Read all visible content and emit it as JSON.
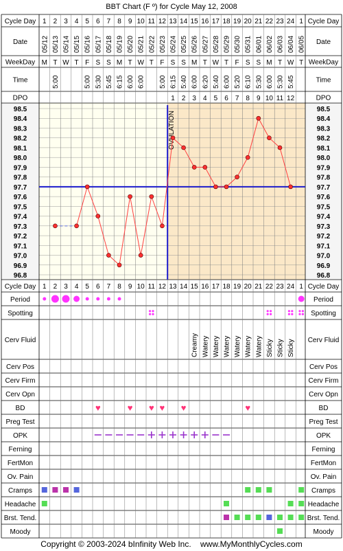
{
  "title": "BBT Chart (F º) for Cycle May 12, 2008",
  "footer": "Copyright © 2003-2024 bInfinity Web Inc.    www.MyMonthlyCycles.com",
  "row_labels": {
    "cycle_day": "Cycle Day",
    "date": "Date",
    "weekday": "WeekDay",
    "time": "Time",
    "dpo": "DPO",
    "ovulation": "OVULATION"
  },
  "cycle_days": [
    "1",
    "2",
    "3",
    "4",
    "5",
    "6",
    "7",
    "8",
    "9",
    "10",
    "11",
    "12",
    "13",
    "14",
    "15",
    "16",
    "17",
    "18",
    "19",
    "20",
    "21",
    "22",
    "23",
    "24",
    "1"
  ],
  "dates": [
    "05/12",
    "05/13",
    "05/14",
    "05/15",
    "05/16",
    "05/17",
    "05/18",
    "05/19",
    "05/20",
    "05/21",
    "05/22",
    "05/23",
    "05/24",
    "05/25",
    "05/26",
    "05/27",
    "05/28",
    "05/29",
    "05/30",
    "05/31",
    "06/01",
    "06/02",
    "06/03",
    "06/04",
    "06/05"
  ],
  "weekdays": [
    "M",
    "T",
    "W",
    "T",
    "F",
    "S",
    "S",
    "M",
    "T",
    "W",
    "T",
    "F",
    "S",
    "S",
    "M",
    "T",
    "W",
    "T",
    "F",
    "S",
    "S",
    "M",
    "T",
    "W",
    "T"
  ],
  "times": [
    "",
    "5:00",
    "",
    "",
    "5:00",
    "5:30",
    "5:45",
    "6:15",
    "6:00",
    "6:00",
    "",
    "5:00",
    "6:15",
    "5:40",
    "6:00",
    "6:20",
    "5:40",
    "6:00",
    "5:20",
    "6:10",
    "5:30",
    "6:00",
    "5:30",
    "5:45",
    ""
  ],
  "dpo": [
    "",
    "",
    "",
    "",
    "",
    "",
    "",
    "",
    "",
    "",
    "",
    "",
    "1",
    "2",
    "3",
    "4",
    "5",
    "6",
    "7",
    "8",
    "9",
    "10",
    "11",
    "12",
    ""
  ],
  "bottom_rows": [
    {
      "key": "period",
      "label": "Period"
    },
    {
      "key": "spotting",
      "label": "Spotting"
    },
    {
      "key": "cerv_fluid",
      "label": "Cerv Fluid"
    },
    {
      "key": "cerv_pos",
      "label": "Cerv Pos"
    },
    {
      "key": "cerv_firm",
      "label": "Cerv Firm"
    },
    {
      "key": "cerv_opn",
      "label": "Cerv Opn"
    },
    {
      "key": "bd",
      "label": "BD"
    },
    {
      "key": "preg_test",
      "label": "Preg Test"
    },
    {
      "key": "opk",
      "label": "OPK"
    },
    {
      "key": "ferning",
      "label": "Ferning"
    },
    {
      "key": "fertmon",
      "label": "FertMon"
    },
    {
      "key": "ov_pain",
      "label": "Ov. Pain"
    },
    {
      "key": "cramps",
      "label": "Cramps"
    },
    {
      "key": "headache",
      "label": "Headache"
    },
    {
      "key": "brst_tend",
      "label": "Brst. Tend."
    },
    {
      "key": "moody",
      "label": "Moody"
    }
  ],
  "period": [
    "small",
    "large",
    "large",
    "medium",
    "small",
    "small",
    "small",
    "small",
    "",
    "",
    "",
    "",
    "",
    "",
    "",
    "",
    "",
    "",
    "",
    "",
    "",
    "",
    "",
    "",
    "medium"
  ],
  "spotting": [
    0,
    0,
    0,
    0,
    0,
    0,
    0,
    0,
    0,
    0,
    1,
    0,
    0,
    0,
    0,
    0,
    0,
    0,
    0,
    0,
    0,
    1,
    0,
    1,
    1
  ],
  "cerv_fluid": [
    "",
    "",
    "",
    "",
    "",
    "",
    "",
    "",
    "",
    "",
    "",
    "",
    "",
    "",
    "Creamy",
    "Watery",
    "Watery",
    "Watery",
    "Watery",
    "Watery",
    "Watery",
    "Sticky",
    "Sticky",
    "Sticky",
    ""
  ],
  "bd": [
    0,
    0,
    0,
    0,
    0,
    1,
    0,
    0,
    1,
    0,
    1,
    1,
    0,
    1,
    0,
    0,
    0,
    0,
    0,
    1,
    0,
    0,
    0,
    0,
    0
  ],
  "opk": [
    "",
    "",
    "",
    "",
    "",
    "neg",
    "neg",
    "neg",
    "neg",
    "neg",
    "pos",
    "pos",
    "pos",
    "pos",
    "pos",
    "pos",
    "neg",
    "neg",
    "",
    "",
    "",
    "",
    "",
    "",
    ""
  ],
  "cramps": [
    "blue",
    "purple",
    "purple",
    "blue",
    "",
    "",
    "",
    "",
    "",
    "",
    "",
    "",
    "",
    "",
    "",
    "",
    "",
    "",
    "",
    "green",
    "green",
    "green",
    "",
    "",
    "green"
  ],
  "headache": [
    "green",
    "",
    "",
    "",
    "",
    "",
    "",
    "",
    "",
    "",
    "",
    "",
    "",
    "",
    "",
    "",
    "",
    "green",
    "",
    "",
    "",
    "",
    "",
    "green",
    "green"
  ],
  "brst_tend": [
    "",
    "",
    "",
    "",
    "",
    "",
    "",
    "",
    "",
    "",
    "",
    "",
    "",
    "",
    "",
    "",
    "",
    "purple",
    "green",
    "green",
    "green",
    "blue",
    "green",
    "green",
    "green"
  ],
  "moody": [
    "",
    "",
    "",
    "",
    "",
    "",
    "",
    "",
    "",
    "",
    "",
    "",
    "",
    "",
    "",
    "",
    "",
    "",
    "",
    "",
    "",
    "",
    "green",
    "",
    ""
  ],
  "chart_data": {
    "type": "line",
    "title": "BBT Chart (F º) for Cycle May 12, 2008",
    "xlabel": "Cycle Day",
    "ylabel": "",
    "x": [
      1,
      2,
      3,
      4,
      5,
      6,
      7,
      8,
      9,
      10,
      11,
      12,
      13,
      14,
      15,
      16,
      17,
      18,
      19,
      20,
      21,
      22,
      23,
      24,
      25
    ],
    "temperatures": [
      null,
      97.3,
      null,
      97.3,
      97.7,
      97.4,
      97.0,
      96.9,
      97.6,
      97.0,
      97.6,
      97.3,
      98.2,
      98.1,
      97.9,
      97.9,
      97.7,
      97.7,
      97.8,
      98.0,
      98.4,
      98.2,
      98.1,
      97.7,
      null
    ],
    "estimated_gap": [
      2,
      4
    ],
    "ylim": [
      96.8,
      98.5
    ],
    "yticks": [
      "98.5",
      "98.4",
      "98.3",
      "98.2",
      "98.1",
      "98.0",
      "97.9",
      "97.8",
      "97.7",
      "97.6",
      "97.5",
      "97.4",
      "97.3",
      "97.2",
      "97.1",
      "97.0",
      "96.9",
      "96.8"
    ],
    "coverline": 97.7,
    "ovulation_day": 12,
    "grid": true,
    "colors": {
      "line": "#ff4040",
      "marker": "#ff3030",
      "coverline": "#1a1acc",
      "ovulation": "#1a1acc",
      "luteal_bg": "#fbe8c8",
      "follicular_bg": "#fffff0",
      "label_bg": "#f5f5f5",
      "pink": "#ff33ff",
      "heart": "#ff3377",
      "opk": "#9933cc",
      "green": "#55dd55",
      "blue": "#5566dd",
      "purple": "#bb33aa"
    }
  }
}
